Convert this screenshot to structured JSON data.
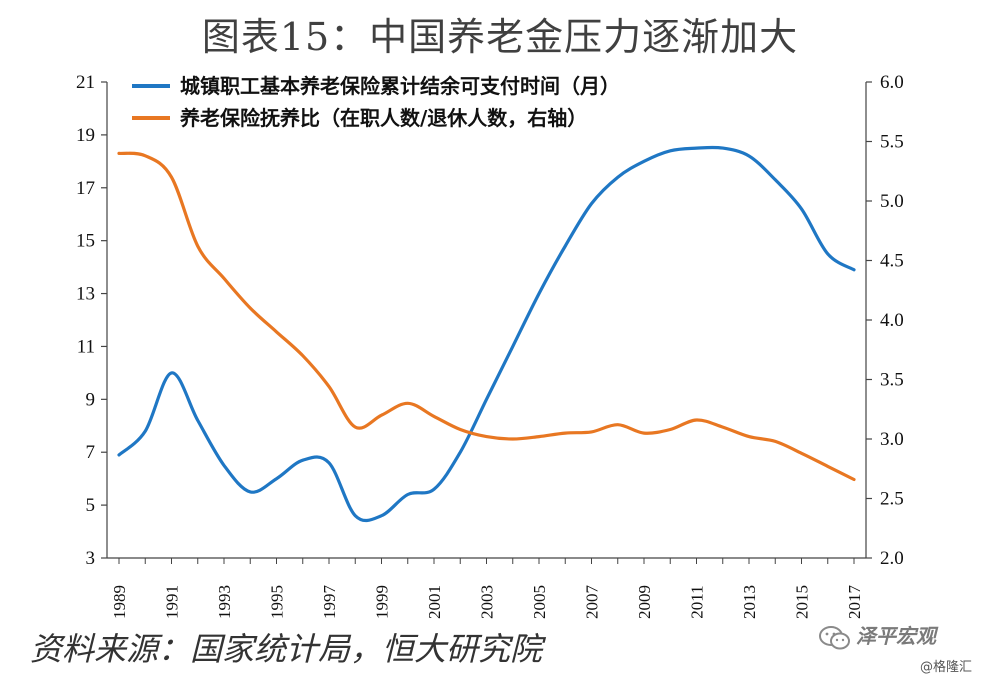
{
  "title": "图表15：中国养老金压力逐渐加大",
  "source": "资料来源：国家统计局，恒大研究院",
  "brand": "泽平宏观",
  "watermark": "@格隆汇",
  "chart_data": {
    "type": "line",
    "x": [
      1989,
      1990,
      1991,
      1992,
      1993,
      1994,
      1995,
      1996,
      1997,
      1998,
      1999,
      2000,
      2001,
      2002,
      2003,
      2004,
      2005,
      2006,
      2007,
      2008,
      2009,
      2010,
      2011,
      2012,
      2013,
      2014,
      2015,
      2016,
      2017
    ],
    "x_tick_labels": [
      "1989",
      "1991",
      "1993",
      "1995",
      "1997",
      "1999",
      "2001",
      "2003",
      "2005",
      "2007",
      "2009",
      "2011",
      "2013",
      "2015",
      "2017"
    ],
    "y_left": {
      "min": 3,
      "max": 21,
      "ticks": [
        "3",
        "5",
        "7",
        "9",
        "11",
        "13",
        "15",
        "17",
        "19",
        "21"
      ]
    },
    "y_right": {
      "min": 2.0,
      "max": 6.0,
      "ticks": [
        "2.0",
        "2.5",
        "3.0",
        "3.5",
        "4.0",
        "4.5",
        "5.0",
        "5.5",
        "6.0"
      ]
    },
    "legend_position": "top-left",
    "grid": false,
    "series": [
      {
        "name": "城镇职工基本养老保险累计结余可支付时间（月）",
        "axis": "left",
        "color": "#1f77c4",
        "values": [
          6.9,
          7.8,
          10.0,
          8.2,
          6.5,
          5.5,
          6.0,
          6.7,
          6.6,
          4.6,
          4.6,
          5.4,
          5.6,
          7.0,
          9.0,
          11.0,
          13.0,
          14.8,
          16.4,
          17.4,
          18.0,
          18.4,
          18.5,
          18.5,
          18.2,
          17.3,
          16.2,
          14.5,
          13.9
        ]
      },
      {
        "name": "养老保险抚养比（在职人数/退休人数，右轴）",
        "axis": "right",
        "color": "#e87722",
        "values": [
          5.4,
          5.38,
          5.2,
          4.62,
          4.35,
          4.1,
          3.9,
          3.7,
          3.44,
          3.1,
          3.2,
          3.3,
          3.19,
          3.08,
          3.02,
          3.0,
          3.02,
          3.05,
          3.06,
          3.12,
          3.05,
          3.08,
          3.16,
          3.1,
          3.02,
          2.98,
          2.88,
          2.77,
          2.66
        ]
      }
    ]
  }
}
